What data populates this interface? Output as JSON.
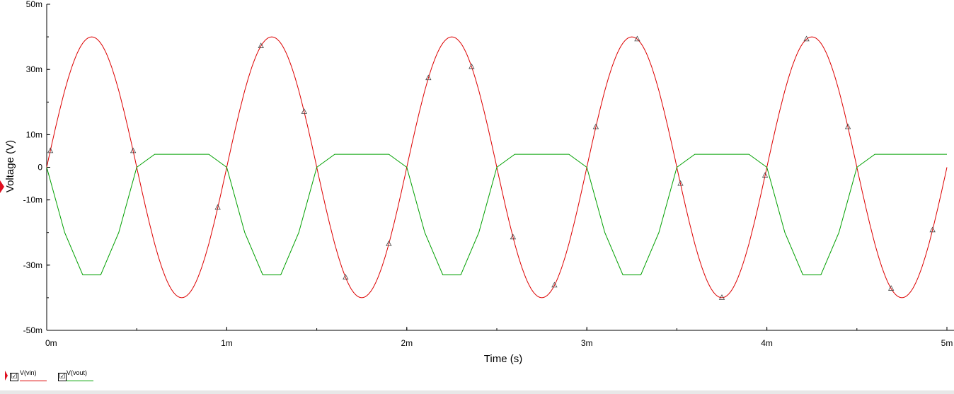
{
  "chart_data": {
    "type": "line",
    "xlabel": "Time (s)",
    "ylabel": "Voltage (V)",
    "xlim": [
      0,
      0.005
    ],
    "ylim": [
      -0.05,
      0.05
    ],
    "x_ticks": [
      {
        "value": 0,
        "label": "0m"
      },
      {
        "value": 0.001,
        "label": "1m"
      },
      {
        "value": 0.002,
        "label": "2m"
      },
      {
        "value": 0.003,
        "label": "3m"
      },
      {
        "value": 0.004,
        "label": "4m"
      },
      {
        "value": 0.005,
        "label": "5m"
      }
    ],
    "y_ticks": [
      {
        "value": 0.05,
        "label": "50m"
      },
      {
        "value": 0.03,
        "label": "30m"
      },
      {
        "value": 0.01,
        "label": "10m"
      },
      {
        "value": 0,
        "label": "0"
      },
      {
        "value": -0.01,
        "label": "-10m"
      },
      {
        "value": -0.03,
        "label": "-30m"
      },
      {
        "value": -0.05,
        "label": "-50m"
      }
    ],
    "grid": false,
    "legend_position": "bottom-left",
    "series": [
      {
        "name": "V(vin)",
        "color": "#dd0000",
        "amplitude": 0.04,
        "frequency": 1000,
        "x": [
          0,
          0.0001,
          0.0002,
          0.0003,
          0.0004,
          0.0005,
          0.0006,
          0.0007,
          0.0008,
          0.0009,
          0.001,
          0.0011,
          0.0012,
          0.0013,
          0.0014,
          0.0015,
          0.0016,
          0.0017,
          0.0018,
          0.0019,
          0.002,
          0.0021,
          0.0022,
          0.0023,
          0.0024,
          0.0025,
          0.0026,
          0.0027,
          0.0028,
          0.0029,
          0.003,
          0.0031,
          0.0032,
          0.0033,
          0.0034,
          0.0035,
          0.0036,
          0.0037,
          0.0038,
          0.0039,
          0.004,
          0.0041,
          0.0042,
          0.0043,
          0.0044,
          0.0045,
          0.0046,
          0.0047,
          0.0048,
          0.0049,
          0.005
        ],
        "values": [
          0,
          0.0235,
          0.038,
          0.038,
          0.0235,
          0,
          -0.0235,
          -0.038,
          -0.038,
          -0.0235,
          0,
          0.0235,
          0.038,
          0.038,
          0.0235,
          0,
          -0.0235,
          -0.038,
          -0.038,
          -0.0235,
          0,
          0.0235,
          0.038,
          0.038,
          0.0235,
          0,
          -0.0235,
          -0.038,
          -0.038,
          -0.0235,
          0,
          0.0235,
          0.038,
          0.038,
          0.0235,
          0,
          -0.0235,
          -0.038,
          -0.038,
          -0.0235,
          0,
          0.0235,
          0.038,
          0.038,
          0.0235,
          0,
          -0.0235,
          -0.038,
          -0.038,
          -0.0235,
          0
        ]
      },
      {
        "name": "V(vout)",
        "color": "#00a000",
        "x": [
          0,
          0.0001,
          0.0002,
          0.0003,
          0.0004,
          0.0005,
          0.0006,
          0.0007,
          0.0008,
          0.0009,
          0.001,
          0.0011,
          0.0012,
          0.0013,
          0.0014,
          0.0015,
          0.0016,
          0.0017,
          0.0018,
          0.0019,
          0.002,
          0.0021,
          0.0022,
          0.0023,
          0.0024,
          0.0025,
          0.0026,
          0.0027,
          0.0028,
          0.0029,
          0.003,
          0.0031,
          0.0032,
          0.0033,
          0.0034,
          0.0035,
          0.0036,
          0.0037,
          0.0038,
          0.0039,
          0.004,
          0.0041,
          0.0042,
          0.0043,
          0.0044,
          0.0045,
          0.0046,
          0.0047,
          0.0048,
          0.0049,
          0.005
        ],
        "values": [
          0,
          -0.02,
          -0.033,
          -0.033,
          -0.02,
          0,
          0.004,
          0.004,
          0.004,
          0.004,
          0,
          -0.02,
          -0.033,
          -0.033,
          -0.02,
          0,
          0.004,
          0.004,
          0.004,
          0.004,
          0,
          -0.02,
          -0.033,
          -0.033,
          -0.02,
          0,
          0.004,
          0.004,
          0.004,
          0.004,
          0,
          -0.02,
          -0.033,
          -0.033,
          -0.02,
          0,
          0.004,
          0.004,
          0.004,
          0.004,
          0,
          -0.02,
          -0.033,
          -0.033,
          -0.02,
          0,
          0.004,
          0.004,
          0.004,
          0.004,
          0.004
        ]
      }
    ]
  },
  "legend": {
    "items": [
      {
        "label": "V(vin)",
        "checked": "☑",
        "color": "#dd0000"
      },
      {
        "label": "V(vout)",
        "checked": "☑",
        "color": "#00a000"
      }
    ]
  }
}
